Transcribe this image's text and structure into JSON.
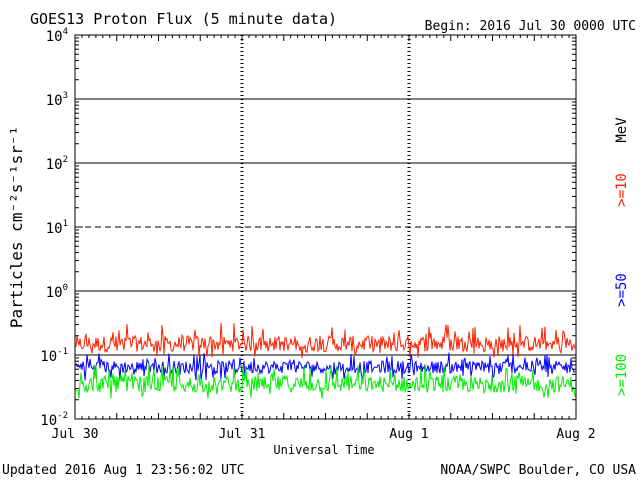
{
  "header": {
    "title": "GOES13 Proton Flux (5 minute data)",
    "begin": "Begin: 2016 Jul 30 0000 UTC"
  },
  "footer": {
    "updated": "Updated 2016 Aug  1 23:56:02 UTC",
    "credit": "NOAA/SWPC Boulder, CO USA"
  },
  "chart_data": {
    "type": "line",
    "ylabel": "Particles cm⁻²s⁻¹sr⁻¹",
    "xlabel": "Universal Time",
    "y_scale": "log",
    "ylim": [
      0.01,
      10000
    ],
    "y_ticks": [
      {
        "base": "10",
        "exp": "4"
      },
      {
        "base": "10",
        "exp": "3"
      },
      {
        "base": "10",
        "exp": "2"
      },
      {
        "base": "10",
        "exp": "1"
      },
      {
        "base": "10",
        "exp": "0"
      },
      {
        "base": "10",
        "exp": "-1"
      },
      {
        "base": "10",
        "exp": "-2"
      }
    ],
    "x_ticks": [
      "Jul 30",
      "Jul 31",
      "Aug 1",
      "Aug 2"
    ],
    "xlim": [
      "2016-07-30 00:00",
      "2016-08-02 00:00"
    ],
    "units_label": "MeV",
    "reference_lines": [
      {
        "value": 1000,
        "style": "solid"
      },
      {
        "value": 100,
        "style": "solid"
      },
      {
        "value": 10,
        "style": "dashed"
      },
      {
        "value": 1,
        "style": "solid"
      },
      {
        "value": 0.1,
        "style": "solid"
      }
    ],
    "series": [
      {
        "name": ">=10",
        "color": "#ff2000",
        "typical": 0.15,
        "range": [
          0.09,
          0.32
        ]
      },
      {
        "name": ">=50",
        "color": "#0000ff",
        "typical": 0.065,
        "range": [
          0.04,
          0.11
        ]
      },
      {
        "name": ">=100",
        "color": "#00ee00",
        "typical": 0.035,
        "range": [
          0.02,
          0.075
        ]
      }
    ]
  }
}
